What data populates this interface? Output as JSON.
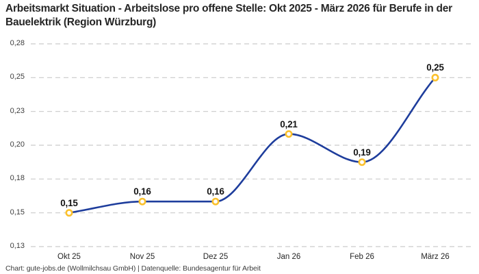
{
  "title": "Arbeitsmarkt Situation - Arbeitslose pro offene Stelle: Okt 2025 - März 2026 für Berufe in der Bauelektrik (Region Würzburg)",
  "footer": "Chart: gute-jobs.de (Wollmilchsau GmbH) | Datenquelle: Bundesagentur für Arbeit",
  "chart_data": {
    "type": "line",
    "title": "Arbeitsmarkt Situation - Arbeitslose pro offene Stelle: Okt 2025 - März 2026 für Berufe in der Bauelektrik (Region Würzburg)",
    "categories": [
      "Okt 25",
      "Nov 25",
      "Dez 25",
      "Jan 26",
      "Feb 26",
      "März 26"
    ],
    "series": [
      {
        "name": "Arbeitslose pro offene Stelle",
        "values": [
          0.15,
          0.16,
          0.16,
          0.21,
          0.19,
          0.25
        ]
      }
    ],
    "point_labels": [
      "0,15",
      "0,16",
      "0,16",
      "0,21",
      "0,19",
      "0,25"
    ],
    "y_axis": {
      "tick_labels": [
        "0,28",
        "0,25",
        "0,23",
        "0,20",
        "0,18",
        "0,15",
        "0,13"
      ],
      "tick_values": [
        0.28,
        0.25,
        0.23,
        0.2,
        0.18,
        0.15,
        0.13
      ],
      "range": [
        0.13,
        0.28
      ],
      "decimal_separator": ","
    },
    "x_axis": {
      "label": "",
      "tick_labels": [
        "Okt 25",
        "Nov 25",
        "Dez 25",
        "Jan 26",
        "Feb 26",
        "März 26"
      ]
    },
    "grid": {
      "horizontal": true,
      "vertical": false,
      "style": "dashed"
    },
    "legend": "none",
    "curve": "monotone-smooth",
    "markers": "open-circle"
  },
  "colors": {
    "background": "#ffffff",
    "line": "#1e3d9c",
    "marker_stroke": "#fbc12d",
    "marker_fill": "#ffffff",
    "gridline": "#c9c9c9",
    "title_text": "#262626",
    "y_tick_text": "#3d3d3d",
    "x_tick_text": "#262626",
    "value_label_text": "#141414",
    "footer_text": "#3c3c3c"
  }
}
